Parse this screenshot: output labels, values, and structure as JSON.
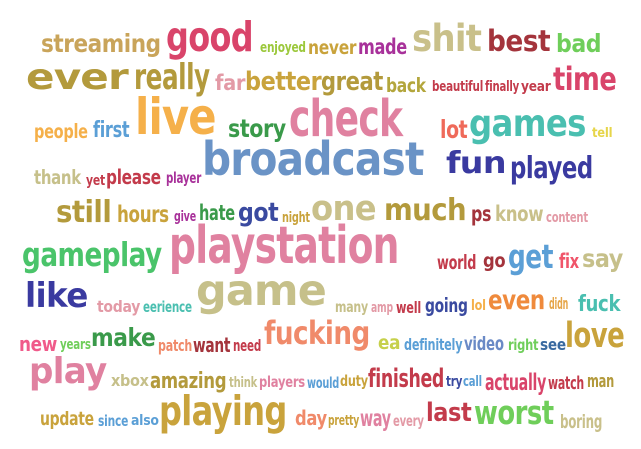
{
  "words": [
    {
      "text": "streaming",
      "color": "#c9a45a"
    },
    {
      "text": "good",
      "color": "#d9446a"
    },
    {
      "text": "enjoyed",
      "color": "#9cc83c"
    },
    {
      "text": "never",
      "color": "#c9a33c"
    },
    {
      "text": "made",
      "color": "#a8319a"
    },
    {
      "text": "shit",
      "color": "#c9c08a"
    },
    {
      "text": "best",
      "color": "#a4343c"
    },
    {
      "text": "bad",
      "color": "#6fce5a"
    },
    {
      "text": "ever",
      "color": "#b39a3c"
    },
    {
      "text": "really",
      "color": "#b39a3c"
    },
    {
      "text": "far",
      "color": "#e39aa6"
    },
    {
      "text": "better",
      "color": "#c9a33c"
    },
    {
      "text": "great",
      "color": "#b39a3c"
    },
    {
      "text": "back",
      "color": "#b3a63c"
    },
    {
      "text": "beautiful",
      "color": "#c33b4b"
    },
    {
      "text": "finally",
      "color": "#c33b4b"
    },
    {
      "text": "year",
      "color": "#c33b4b"
    },
    {
      "text": "time",
      "color": "#d9446a"
    },
    {
      "text": "people",
      "color": "#f5b04a"
    },
    {
      "text": "first",
      "color": "#5b9fd6"
    },
    {
      "text": "live",
      "color": "#f5b04a"
    },
    {
      "text": "story",
      "color": "#3a9a4a"
    },
    {
      "text": "check",
      "color": "#e081a0"
    },
    {
      "text": "lot",
      "color": "#ef6a5a"
    },
    {
      "text": "games",
      "color": "#4abfb0"
    },
    {
      "text": "tell",
      "color": "#e6d54a"
    },
    {
      "text": "broadcast",
      "color": "#6a93c6"
    },
    {
      "text": "fun",
      "color": "#3a3aa0"
    },
    {
      "text": "played",
      "color": "#3a3aa0"
    },
    {
      "text": "thank",
      "color": "#c6c08a"
    },
    {
      "text": "yet",
      "color": "#c33b4b"
    },
    {
      "text": "please",
      "color": "#c33b4b"
    },
    {
      "text": "player",
      "color": "#a8319a"
    },
    {
      "text": "still",
      "color": "#b39a3c"
    },
    {
      "text": "hours",
      "color": "#c9a33c"
    },
    {
      "text": "give",
      "color": "#a8319a"
    },
    {
      "text": "hate",
      "color": "#3a9a4a"
    },
    {
      "text": "got",
      "color": "#3a4aa0"
    },
    {
      "text": "night",
      "color": "#c9a33c"
    },
    {
      "text": "one",
      "color": "#c9c08a"
    },
    {
      "text": "much",
      "color": "#b39a3c"
    },
    {
      "text": "ps",
      "color": "#a4343c"
    },
    {
      "text": "know",
      "color": "#c9c08a"
    },
    {
      "text": "content",
      "color": "#e39aa6"
    },
    {
      "text": "gameplay",
      "color": "#4ac46a"
    },
    {
      "text": "playstation",
      "color": "#e081a0"
    },
    {
      "text": "world",
      "color": "#c33b4b"
    },
    {
      "text": "go",
      "color": "#a4343c"
    },
    {
      "text": "get",
      "color": "#5b9fd6"
    },
    {
      "text": "fix",
      "color": "#f0556a"
    },
    {
      "text": "say",
      "color": "#c6c08a"
    },
    {
      "text": "like",
      "color": "#3a3aa0"
    },
    {
      "text": "today",
      "color": "#e39aa6"
    },
    {
      "text": "eerience",
      "color": "#4abfb0"
    },
    {
      "text": "game",
      "color": "#c6c08a"
    },
    {
      "text": "many",
      "color": "#c6c08a"
    },
    {
      "text": "amp",
      "color": "#e39aa6"
    },
    {
      "text": "well",
      "color": "#c33b4b"
    },
    {
      "text": "going",
      "color": "#3a4aa0"
    },
    {
      "text": "lol",
      "color": "#f5b04a"
    },
    {
      "text": "even",
      "color": "#ef8a3c"
    },
    {
      "text": "didn",
      "color": "#e6a64a"
    },
    {
      "text": "fuck",
      "color": "#4abfb0"
    },
    {
      "text": "new",
      "color": "#f05a8a"
    },
    {
      "text": "years",
      "color": "#6fce5a"
    },
    {
      "text": "make",
      "color": "#3a9a4a"
    },
    {
      "text": "patch",
      "color": "#f08a6a"
    },
    {
      "text": "want",
      "color": "#a4343c"
    },
    {
      "text": "need",
      "color": "#c33b4b"
    },
    {
      "text": "fucking",
      "color": "#f08a6a"
    },
    {
      "text": "ea",
      "color": "#c6d04a"
    },
    {
      "text": "definitely",
      "color": "#5b9fd6"
    },
    {
      "text": "video",
      "color": "#6a8ac6"
    },
    {
      "text": "right",
      "color": "#6fce5a"
    },
    {
      "text": "see",
      "color": "#3a6aa0"
    },
    {
      "text": "love",
      "color": "#c9a33c"
    },
    {
      "text": "play",
      "color": "#e081a0"
    },
    {
      "text": "xbox",
      "color": "#c6c08a"
    },
    {
      "text": "amazing",
      "color": "#b39a3c"
    },
    {
      "text": "think",
      "color": "#c6c08a"
    },
    {
      "text": "players",
      "color": "#e081a0"
    },
    {
      "text": "would",
      "color": "#5b9fd6"
    },
    {
      "text": "duty",
      "color": "#c9a33c"
    },
    {
      "text": "finished",
      "color": "#c33b4b"
    },
    {
      "text": "try",
      "color": "#3a4aa0"
    },
    {
      "text": "call",
      "color": "#5b9fd6"
    },
    {
      "text": "actually",
      "color": "#d9446a"
    },
    {
      "text": "watch",
      "color": "#c33b4b"
    },
    {
      "text": "man",
      "color": "#b39a3c"
    },
    {
      "text": "update",
      "color": "#c9a33c"
    },
    {
      "text": "since",
      "color": "#5b9fd6"
    },
    {
      "text": "also",
      "color": "#5b9fd6"
    },
    {
      "text": "playing",
      "color": "#c9a33c"
    },
    {
      "text": "day",
      "color": "#f08a6a"
    },
    {
      "text": "pretty",
      "color": "#c9a33c"
    },
    {
      "text": "way",
      "color": "#e081a0"
    },
    {
      "text": "every",
      "color": "#e39aa6"
    },
    {
      "text": "last",
      "color": "#c33b4b"
    },
    {
      "text": "worst",
      "color": "#6fce5a"
    },
    {
      "text": "boring",
      "color": "#c9c08a"
    }
  ]
}
